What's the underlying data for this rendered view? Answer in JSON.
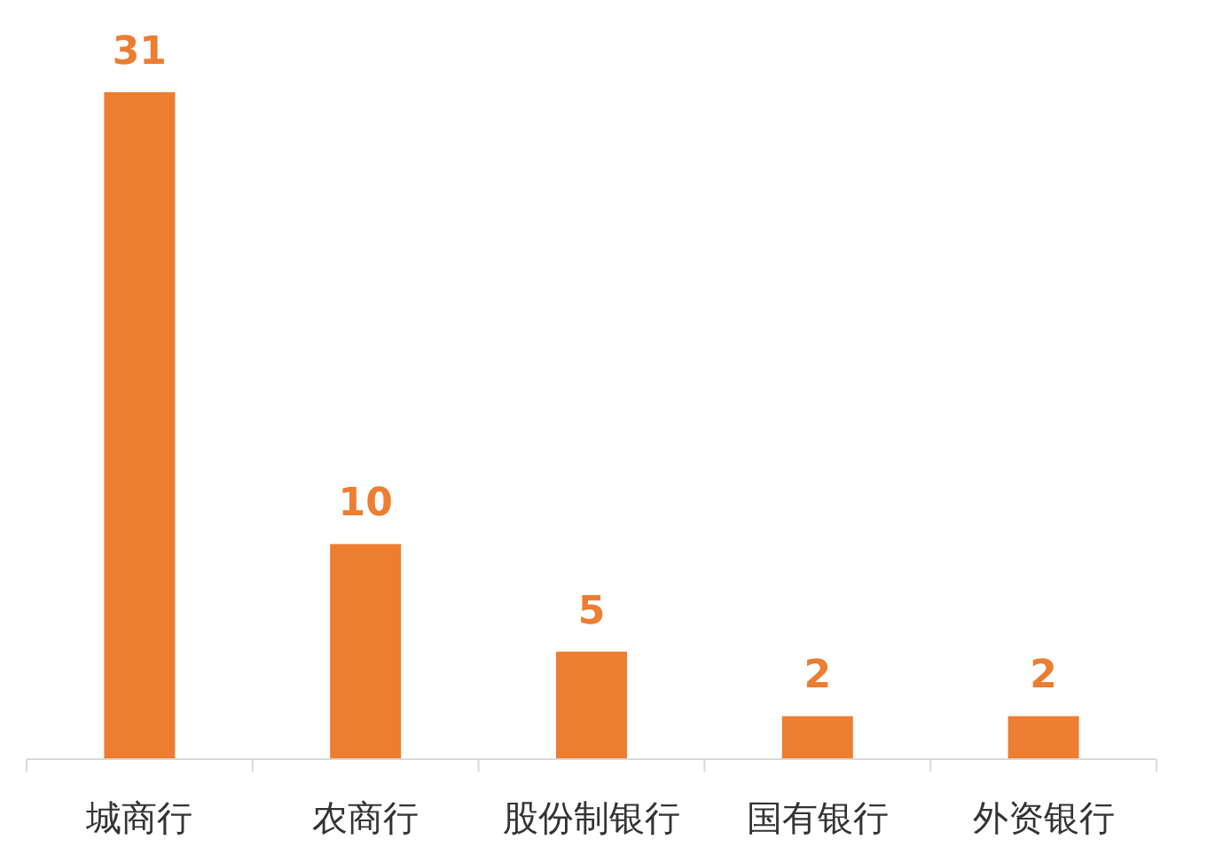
{
  "chart_data": {
    "type": "bar",
    "categories": [
      "城商行",
      "农商行",
      "股份制银行",
      "国有银行",
      "外资银行"
    ],
    "values": [
      31,
      10,
      5,
      2,
      2
    ],
    "color": "#ed7d31",
    "data_labels": true
  }
}
